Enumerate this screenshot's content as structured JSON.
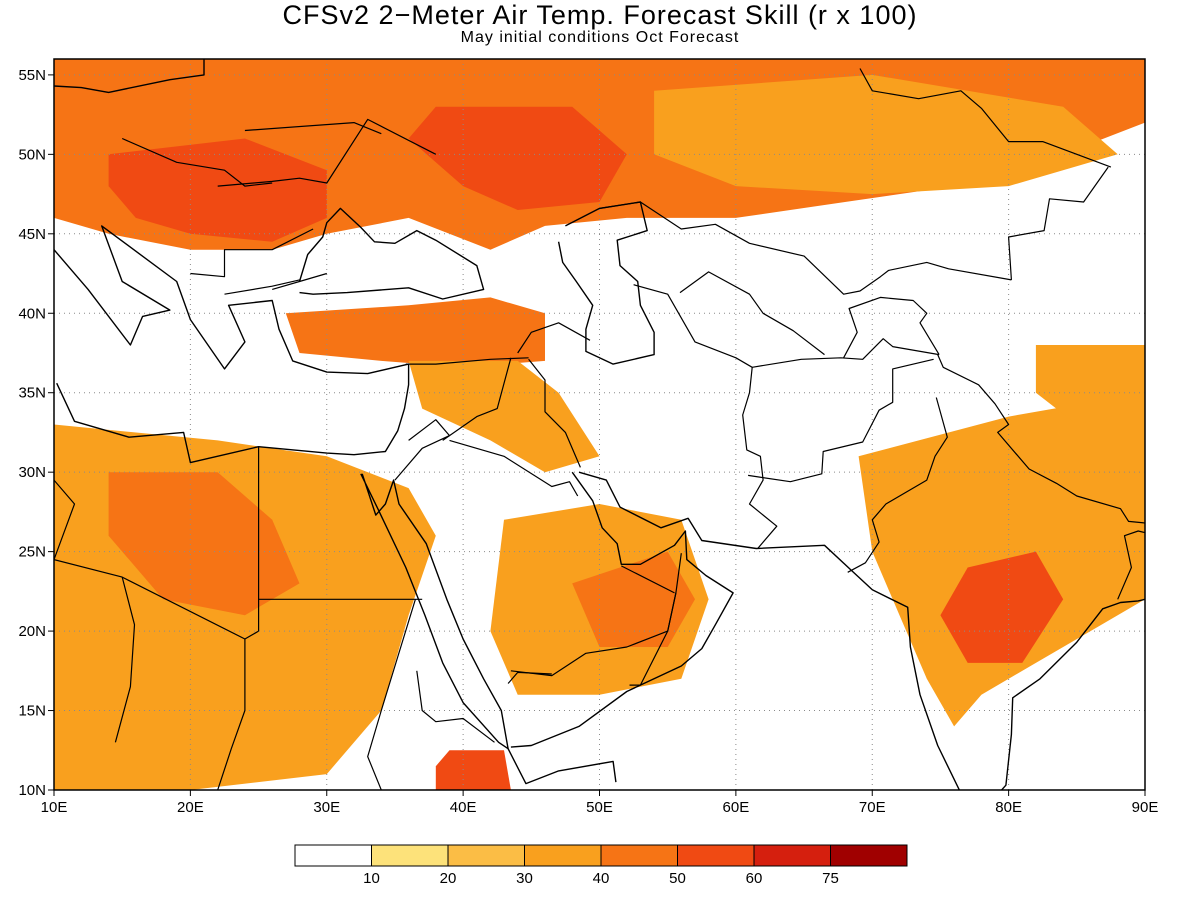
{
  "title": "CFSv2 2−Meter Air Temp. Forecast Skill (r x 100)",
  "subtitle": "May initial conditions  Oct Forecast",
  "map": {
    "lon_range": [
      10,
      90
    ],
    "lat_range": [
      10,
      56
    ],
    "lon_ticks": [
      {
        "value": 10,
        "label": "10E"
      },
      {
        "value": 20,
        "label": "20E"
      },
      {
        "value": 30,
        "label": "30E"
      },
      {
        "value": 40,
        "label": "40E"
      },
      {
        "value": 50,
        "label": "50E"
      },
      {
        "value": 60,
        "label": "60E"
      },
      {
        "value": 70,
        "label": "70E"
      },
      {
        "value": 80,
        "label": "80E"
      },
      {
        "value": 90,
        "label": "90E"
      }
    ],
    "lat_ticks": [
      {
        "value": 10,
        "label": "10N"
      },
      {
        "value": 15,
        "label": "15N"
      },
      {
        "value": 20,
        "label": "20N"
      },
      {
        "value": 25,
        "label": "25N"
      },
      {
        "value": 30,
        "label": "30N"
      },
      {
        "value": 35,
        "label": "35N"
      },
      {
        "value": 40,
        "label": "40N"
      },
      {
        "value": 45,
        "label": "45N"
      },
      {
        "value": 50,
        "label": "50N"
      },
      {
        "value": 55,
        "label": "55N"
      }
    ],
    "grid": "dotted"
  },
  "legend": {
    "bins": [
      {
        "color": "#ffffff"
      },
      {
        "color": "#fde27a"
      },
      {
        "color": "#fbbd45"
      },
      {
        "color": "#f9a01e"
      },
      {
        "color": "#f67415"
      },
      {
        "color": "#f04a13"
      },
      {
        "color": "#d51f0e"
      },
      {
        "color": "#a00000"
      }
    ],
    "labels": [
      "10",
      "20",
      "30",
      "40",
      "50",
      "60",
      "75"
    ]
  },
  "skill_regions": [
    {
      "name": "europe-russia",
      "level": 4
    },
    {
      "name": "balkans",
      "level": 5
    },
    {
      "name": "south-russia",
      "level": 5
    },
    {
      "name": "kazakhstan-siberia",
      "level": 3
    },
    {
      "name": "turkey",
      "level": 4
    },
    {
      "name": "iraq-syria",
      "level": 3
    },
    {
      "name": "sahara-libya-egypt",
      "level": 3
    },
    {
      "name": "sahara-core",
      "level": 4
    },
    {
      "name": "arabia-south",
      "level": 3
    },
    {
      "name": "oman-uae",
      "level": 4
    },
    {
      "name": "india",
      "level": 3
    },
    {
      "name": "central-india-core",
      "level": 5
    },
    {
      "name": "tibet",
      "level": 3
    },
    {
      "name": "ethiopia",
      "level": 5
    }
  ],
  "colors": {
    "coast": "#000000",
    "grid": "#8a8a8a"
  }
}
